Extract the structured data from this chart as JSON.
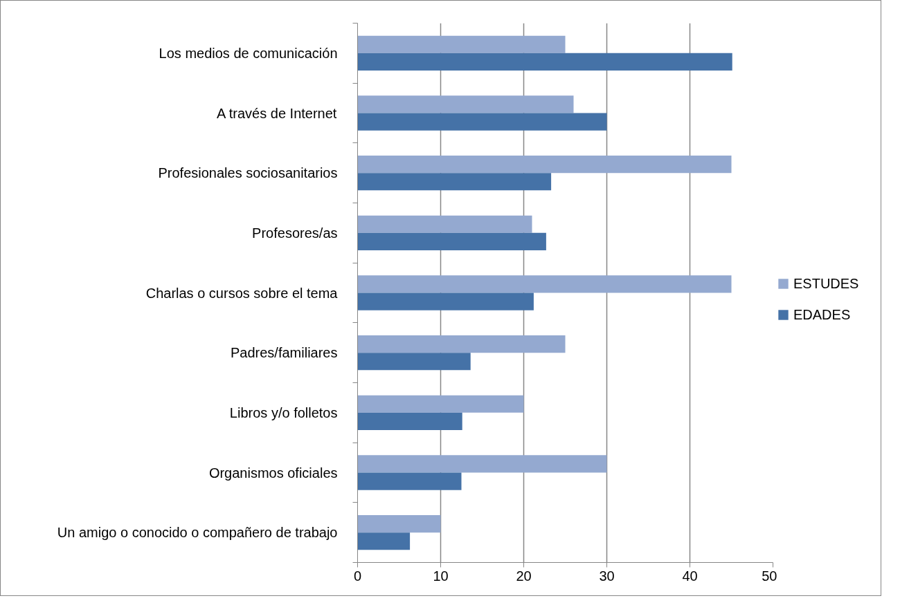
{
  "chart_data": {
    "type": "bar",
    "orientation": "horizontal",
    "categories": [
      "Los medios de comunicación",
      "A través de Internet",
      "Profesionales sociosanitarios",
      "Profesores/as",
      "Charlas o cursos sobre el tema",
      "Padres/familiares",
      "Libros y/o folletos",
      "Organismos oficiales",
      "Un amigo o conocido o compañero de trabajo"
    ],
    "series": [
      {
        "name": "ESTUDES",
        "color": "#94a9d0",
        "values": [
          25,
          26,
          45,
          21,
          45,
          25,
          20,
          30,
          10
        ]
      },
      {
        "name": "EDADES",
        "color": "#4572a7",
        "values": [
          45.1,
          30,
          23.3,
          22.7,
          21.2,
          13.6,
          12.6,
          12.5,
          6.3
        ]
      }
    ],
    "xlim": [
      0,
      50
    ],
    "xticks": [
      0,
      10,
      20,
      30,
      40,
      50
    ],
    "grid": "x",
    "legend": "right"
  }
}
